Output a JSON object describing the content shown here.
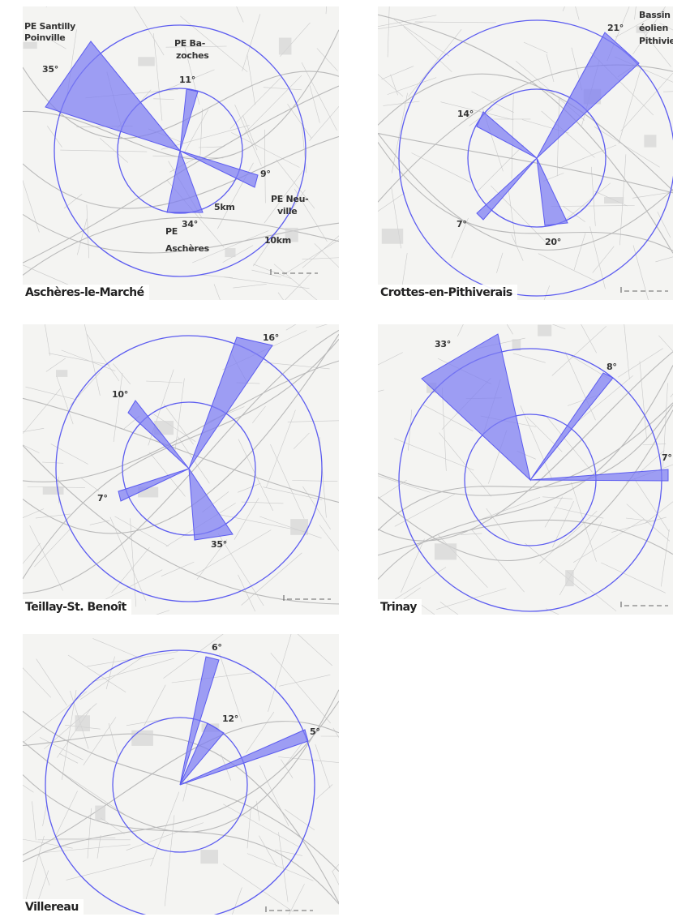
{
  "colors": {
    "accent": "#5c5cf0",
    "fill": "#7b7bf2",
    "map_bg": "#f4f4f2"
  },
  "panels": [
    {
      "id": "asch",
      "town": "Aschères-le-Marché",
      "circle_labels": [
        "5km",
        "10km"
      ],
      "sectors": [
        {
          "angle_label": "35°",
          "farm": "PE Santilly Poinville"
        },
        {
          "angle_label": "11°",
          "farm": "PE Ba- zoches"
        },
        {
          "angle_label": "9°",
          "farm": "PE Neu- ville"
        },
        {
          "angle_label": "34°",
          "farm": "PE Aschères"
        }
      ]
    },
    {
      "id": "crot",
      "town": "Crottes-en-Pithiverais",
      "sectors": [
        {
          "angle_label": "21°",
          "farm": "Bassin éolien Pithiviers"
        },
        {
          "angle_label": "14°"
        },
        {
          "angle_label": "7°"
        },
        {
          "angle_label": "20°"
        }
      ]
    },
    {
      "id": "teil",
      "town": "Teillay-St. Benoît",
      "sectors": [
        {
          "angle_label": "16°"
        },
        {
          "angle_label": "10°"
        },
        {
          "angle_label": "7°"
        },
        {
          "angle_label": "35°"
        }
      ]
    },
    {
      "id": "trin",
      "town": "Trinay",
      "sectors": [
        {
          "angle_label": "33°"
        },
        {
          "angle_label": "8°"
        },
        {
          "angle_label": "7°"
        }
      ]
    },
    {
      "id": "vill",
      "town": "Villereau",
      "sectors": [
        {
          "angle_label": "6°"
        },
        {
          "angle_label": "12°"
        },
        {
          "angle_label": "5°"
        }
      ]
    }
  ]
}
